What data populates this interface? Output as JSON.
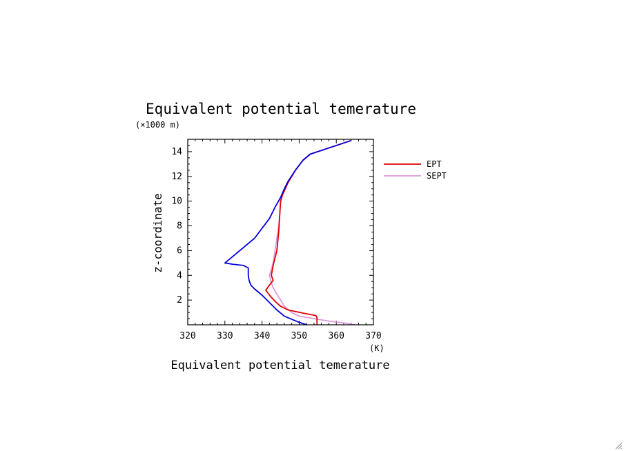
{
  "chart_data": {
    "type": "line",
    "title": "Equivalent potential temerature",
    "xlabel": "Equivalent potential temerature",
    "xunit": "(K)",
    "ylabel": "z-coordinate",
    "yunit": "(×1000 m)",
    "xlim": [
      320,
      370
    ],
    "ylim": [
      0,
      15
    ],
    "xticks": [
      320,
      330,
      340,
      350,
      360,
      370
    ],
    "yticks": [
      2,
      4,
      6,
      8,
      10,
      12,
      14
    ],
    "grid": false,
    "legend_position": "right",
    "series": [
      {
        "name": "EPT",
        "color": "#e00000",
        "points": [
          [
            354.8,
            0
          ],
          [
            354.8,
            0.6
          ],
          [
            354.5,
            0.75
          ],
          [
            351,
            0.95
          ],
          [
            347,
            1.2
          ],
          [
            345,
            1.5
          ],
          [
            343.5,
            1.9
          ],
          [
            342,
            2.4
          ],
          [
            341,
            2.8
          ],
          [
            342,
            3.2
          ],
          [
            343,
            3.6
          ],
          [
            342.5,
            4
          ],
          [
            343,
            4.8
          ],
          [
            344,
            6
          ],
          [
            344.5,
            7.5
          ],
          [
            344.8,
            9
          ],
          [
            345,
            10
          ],
          [
            345.5,
            10.5
          ],
          [
            347,
            11.5
          ],
          [
            349,
            12.5
          ],
          [
            351,
            13.3
          ],
          [
            353,
            13.8
          ],
          [
            357,
            14.2
          ],
          [
            361,
            14.6
          ],
          [
            364,
            14.9
          ]
        ]
      },
      {
        "name": "SEPT",
        "color": "#dd99dd",
        "points": [
          [
            365,
            0
          ],
          [
            362,
            0.15
          ],
          [
            358,
            0.3
          ],
          [
            354,
            0.5
          ],
          [
            350,
            0.7
          ],
          [
            348,
            1
          ],
          [
            346,
            1.5
          ],
          [
            345,
            2
          ],
          [
            344,
            2.5
          ],
          [
            343,
            3
          ],
          [
            342.3,
            3.6
          ],
          [
            342,
            4
          ],
          [
            342.5,
            4.5
          ],
          [
            343,
            5
          ],
          [
            343.5,
            6
          ],
          [
            344,
            7
          ],
          [
            344.5,
            8
          ],
          [
            344.8,
            9
          ],
          [
            345,
            10
          ],
          [
            345.5,
            10.5
          ],
          [
            347,
            11.5
          ],
          [
            349,
            12.5
          ],
          [
            351,
            13.3
          ],
          [
            353,
            13.8
          ],
          [
            357,
            14.2
          ],
          [
            361,
            14.6
          ],
          [
            364,
            14.9
          ]
        ]
      },
      {
        "name": "",
        "color": "#0000dd",
        "points": [
          [
            352,
            0
          ],
          [
            350,
            0.2
          ],
          [
            348,
            0.45
          ],
          [
            346,
            0.7
          ],
          [
            344,
            1.2
          ],
          [
            342,
            1.8
          ],
          [
            340,
            2.4
          ],
          [
            338,
            2.9
          ],
          [
            337,
            3.2
          ],
          [
            336.5,
            3.6
          ],
          [
            336.3,
            4
          ],
          [
            336.3,
            4.6
          ],
          [
            335,
            4.8
          ],
          [
            332,
            4.9
          ],
          [
            330,
            5
          ],
          [
            332,
            5.5
          ],
          [
            334,
            6
          ],
          [
            336,
            6.5
          ],
          [
            338,
            7
          ],
          [
            340,
            7.8
          ],
          [
            342,
            8.6
          ],
          [
            343.5,
            9.5
          ],
          [
            345,
            10.3
          ],
          [
            346,
            11
          ],
          [
            347,
            11.6
          ],
          [
            349,
            12.5
          ],
          [
            351,
            13.3
          ],
          [
            353,
            13.8
          ],
          [
            357,
            14.2
          ],
          [
            361,
            14.6
          ],
          [
            364,
            14.9
          ]
        ]
      }
    ]
  }
}
